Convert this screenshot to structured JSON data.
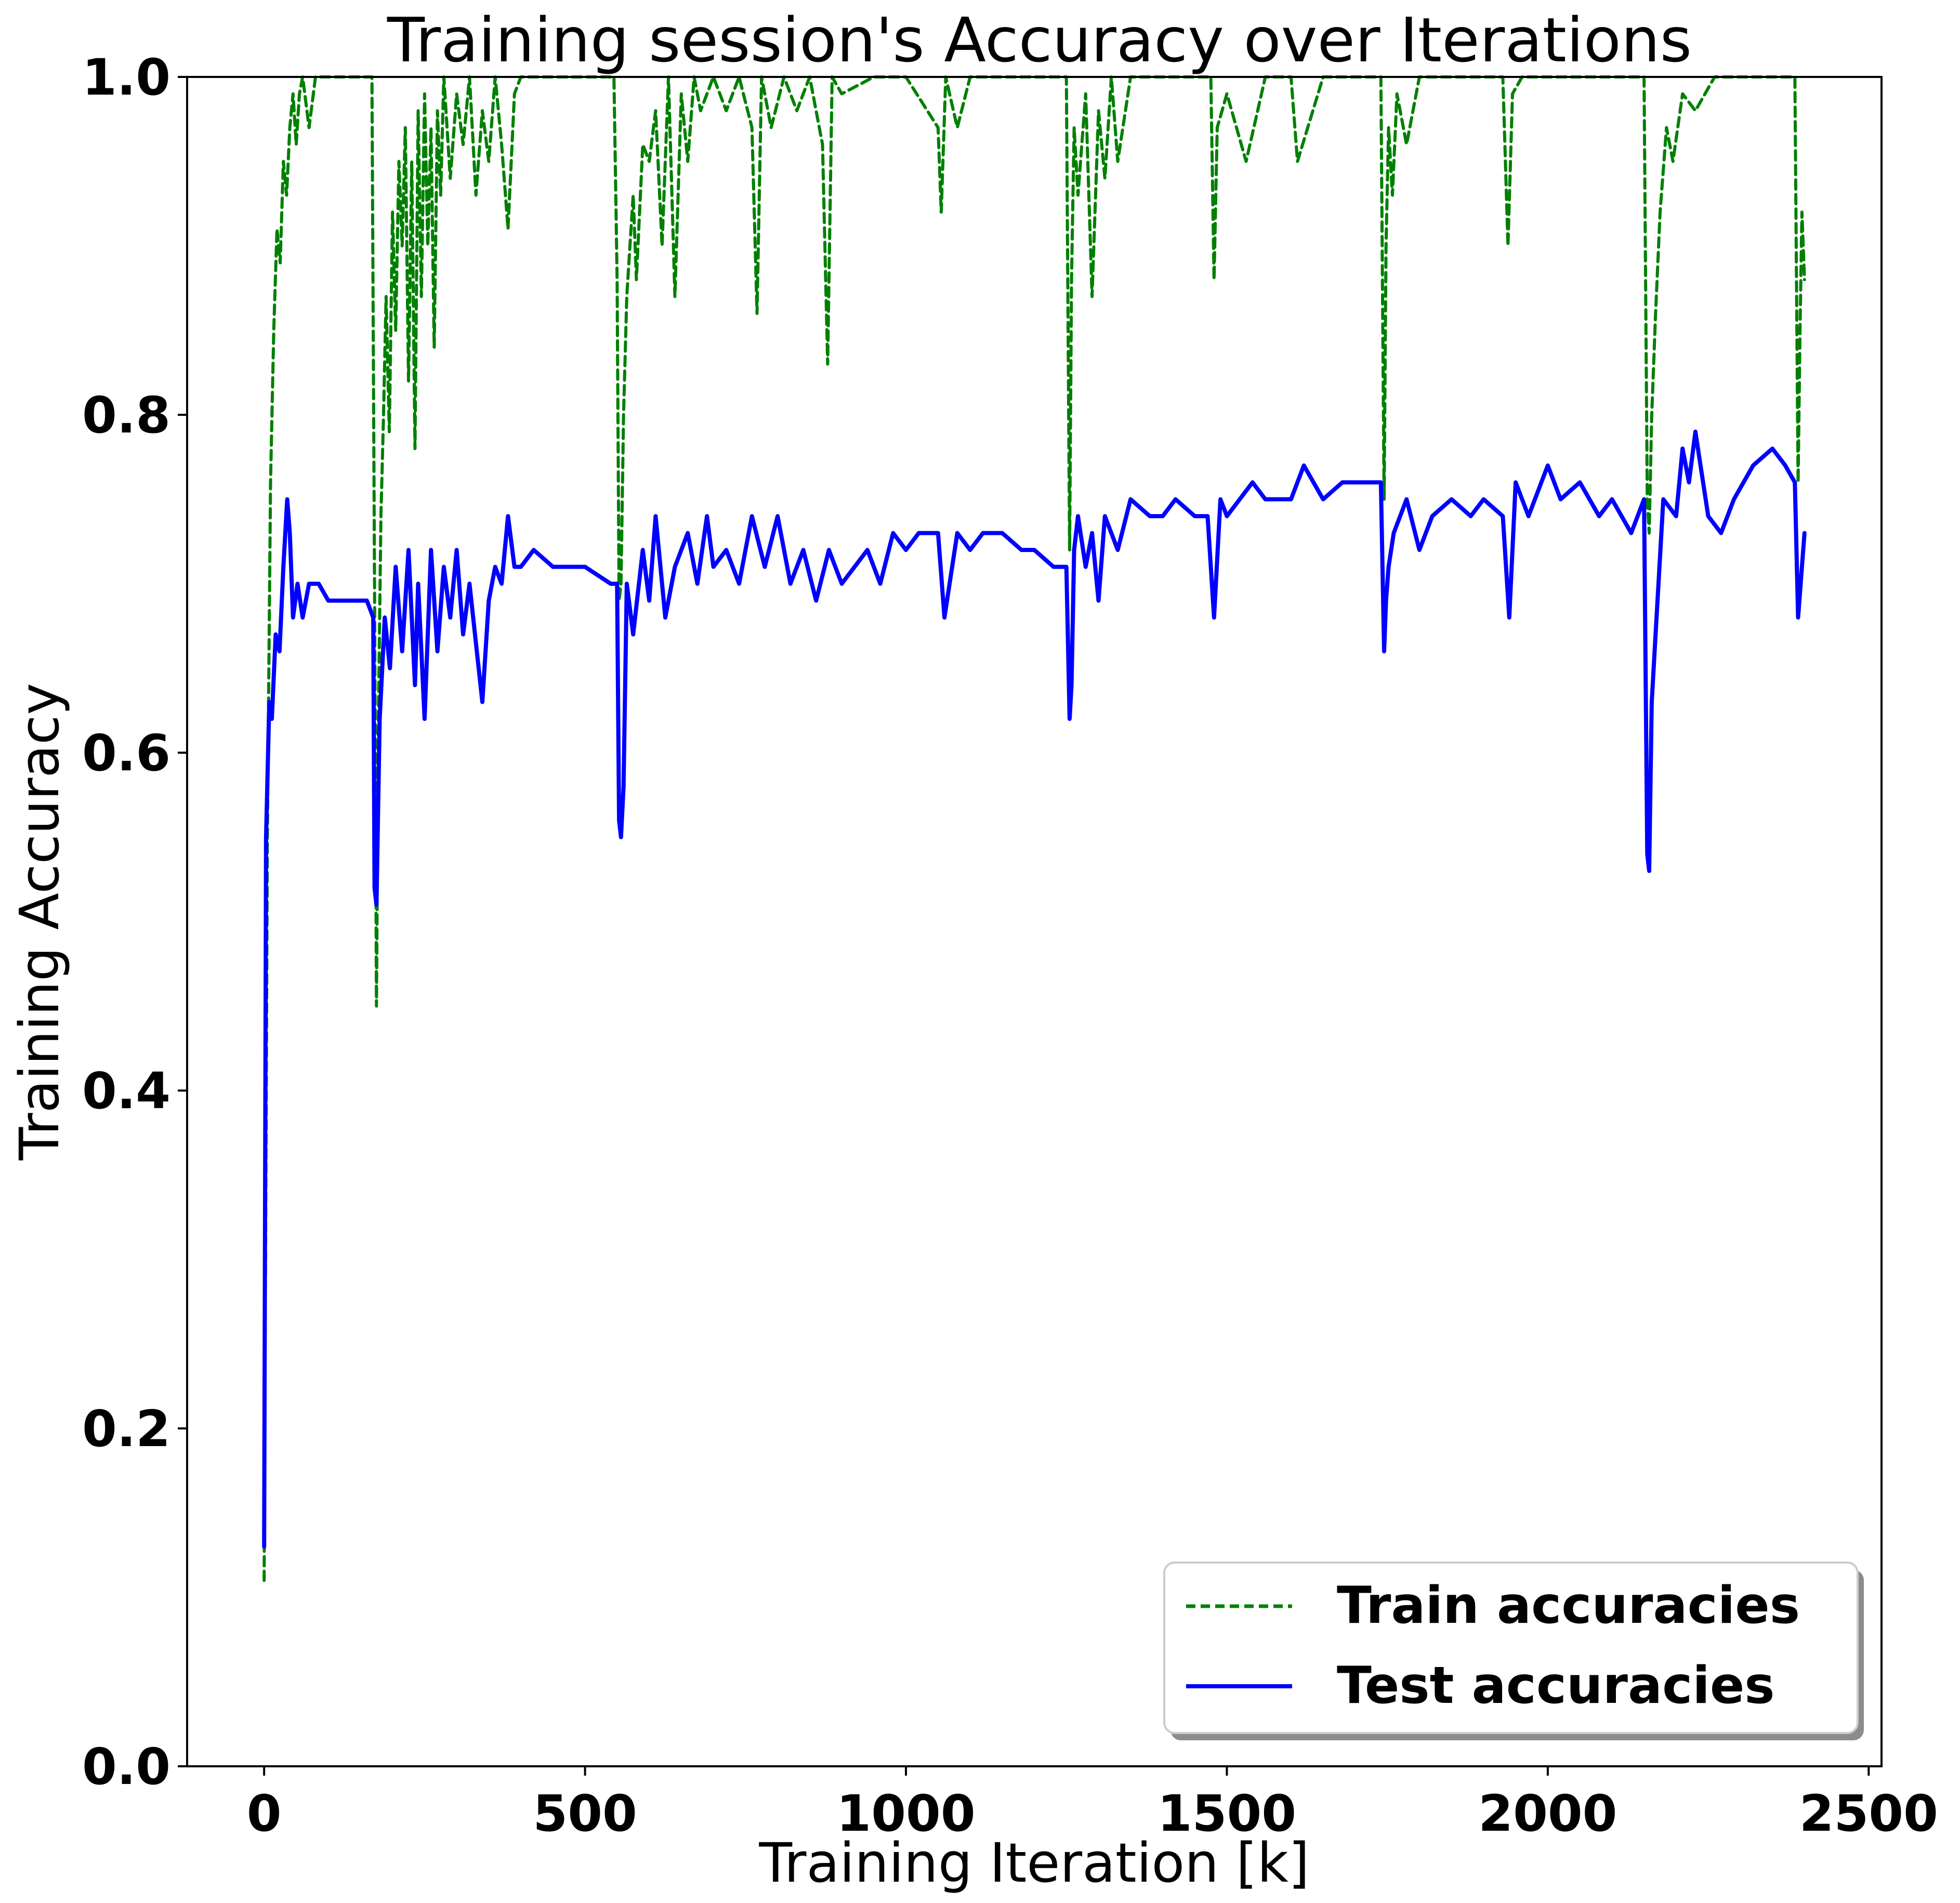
{
  "chart_data": {
    "type": "line",
    "title": "Training session's Accuracy over Iterations",
    "xlabel": "Training Iteration [k]",
    "ylabel": "Training Accuracy",
    "xlim": [
      -120,
      2520
    ],
    "ylim": [
      0.0,
      1.0
    ],
    "xticks": [
      0,
      500,
      1000,
      1500,
      2000,
      2500
    ],
    "xtick_labels": [
      "0",
      "500",
      "1000",
      "1500",
      "2000",
      "2500"
    ],
    "yticks": [
      0.0,
      0.2,
      0.4,
      0.6,
      0.8,
      1.0
    ],
    "ytick_labels": [
      "0.0",
      "0.2",
      "0.4",
      "0.6",
      "0.8",
      "1.0"
    ],
    "grid": false,
    "legend_position": "bottom-right",
    "series": [
      {
        "name": "Train accuracies",
        "color": "#008000",
        "style": "dashed",
        "x": [
          0,
          5,
          10,
          15,
          20,
          25,
          30,
          35,
          40,
          45,
          50,
          55,
          60,
          70,
          80,
          100,
          120,
          150,
          168,
          172,
          175,
          178,
          182,
          186,
          190,
          195,
          200,
          205,
          210,
          215,
          220,
          225,
          230,
          235,
          240,
          245,
          250,
          255,
          260,
          265,
          270,
          275,
          280,
          290,
          300,
          310,
          320,
          330,
          340,
          350,
          360,
          370,
          380,
          390,
          400,
          450,
          500,
          545,
          550,
          553,
          556,
          560,
          565,
          570,
          575,
          580,
          590,
          600,
          610,
          620,
          630,
          640,
          650,
          660,
          670,
          680,
          700,
          720,
          740,
          760,
          768,
          775,
          790,
          810,
          830,
          850,
          870,
          878,
          885,
          900,
          950,
          1000,
          1050,
          1055,
          1062,
          1080,
          1100,
          1200,
          1250,
          1255,
          1258,
          1262,
          1268,
          1280,
          1290,
          1300,
          1310,
          1320,
          1330,
          1350,
          1400,
          1450,
          1475,
          1480,
          1485,
          1500,
          1530,
          1560,
          1600,
          1610,
          1650,
          1700,
          1740,
          1745,
          1748,
          1752,
          1758,
          1765,
          1780,
          1800,
          1850,
          1900,
          1930,
          1938,
          1945,
          1960,
          2000,
          2050,
          2100,
          2150,
          2155,
          2158,
          2162,
          2168,
          2175,
          2185,
          2195,
          2210,
          2230,
          2260,
          2300,
          2350,
          2385,
          2390,
          2393,
          2396,
          2400
        ],
        "values": [
          0.11,
          0.55,
          0.76,
          0.85,
          0.91,
          0.89,
          0.95,
          0.93,
          0.97,
          0.99,
          0.96,
          0.99,
          1.0,
          0.97,
          1.0,
          1.0,
          1.0,
          1.0,
          1.0,
          0.7,
          0.45,
          0.62,
          0.74,
          0.8,
          0.87,
          0.79,
          0.92,
          0.85,
          0.95,
          0.9,
          0.97,
          0.82,
          0.95,
          0.78,
          0.98,
          0.87,
          0.99,
          0.9,
          0.97,
          0.84,
          0.98,
          0.93,
          1.0,
          0.94,
          0.99,
          0.96,
          1.0,
          0.93,
          0.98,
          0.95,
          1.0,
          0.96,
          0.91,
          0.99,
          1.0,
          1.0,
          1.0,
          1.0,
          0.88,
          0.69,
          0.7,
          0.8,
          0.87,
          0.9,
          0.93,
          0.88,
          0.96,
          0.95,
          0.98,
          0.9,
          1.0,
          0.87,
          0.99,
          0.95,
          1.0,
          0.98,
          1.0,
          0.98,
          1.0,
          0.97,
          0.86,
          1.0,
          0.97,
          1.0,
          0.98,
          1.0,
          0.96,
          0.83,
          1.0,
          0.99,
          1.0,
          1.0,
          0.97,
          0.92,
          1.0,
          0.97,
          1.0,
          1.0,
          1.0,
          0.72,
          0.88,
          0.97,
          0.93,
          0.99,
          0.87,
          0.98,
          0.94,
          1.0,
          0.95,
          1.0,
          1.0,
          1.0,
          1.0,
          0.88,
          0.97,
          0.99,
          0.95,
          1.0,
          1.0,
          0.95,
          1.0,
          1.0,
          1.0,
          0.75,
          0.9,
          0.97,
          0.93,
          0.99,
          0.96,
          1.0,
          1.0,
          1.0,
          1.0,
          0.9,
          0.99,
          1.0,
          1.0,
          1.0,
          1.0,
          1.0,
          0.75,
          0.73,
          0.8,
          0.86,
          0.92,
          0.97,
          0.95,
          0.99,
          0.98,
          1.0,
          1.0,
          1.0,
          1.0,
          0.76,
          0.85,
          0.92,
          0.88
        ]
      },
      {
        "name": "Test accuracies",
        "color": "#0000ff",
        "style": "solid",
        "x": [
          0,
          3,
          8,
          12,
          18,
          24,
          30,
          36,
          40,
          45,
          52,
          60,
          70,
          85,
          100,
          120,
          140,
          160,
          170,
          172,
          175,
          180,
          188,
          196,
          205,
          215,
          225,
          235,
          240,
          250,
          260,
          270,
          280,
          290,
          300,
          310,
          320,
          340,
          350,
          360,
          370,
          380,
          390,
          400,
          420,
          450,
          500,
          540,
          550,
          553,
          556,
          560,
          565,
          575,
          590,
          600,
          610,
          625,
          640,
          660,
          675,
          690,
          700,
          720,
          740,
          760,
          780,
          800,
          820,
          840,
          860,
          880,
          900,
          920,
          940,
          960,
          980,
          1000,
          1020,
          1050,
          1060,
          1080,
          1100,
          1120,
          1150,
          1180,
          1200,
          1230,
          1250,
          1255,
          1258,
          1262,
          1268,
          1280,
          1290,
          1300,
          1310,
          1330,
          1350,
          1380,
          1400,
          1420,
          1450,
          1470,
          1480,
          1490,
          1500,
          1520,
          1540,
          1560,
          1600,
          1620,
          1650,
          1680,
          1700,
          1740,
          1745,
          1748,
          1752,
          1760,
          1780,
          1800,
          1820,
          1850,
          1880,
          1900,
          1930,
          1940,
          1950,
          1970,
          2000,
          2020,
          2050,
          2080,
          2100,
          2130,
          2150,
          2155,
          2158,
          2162,
          2168,
          2180,
          2200,
          2210,
          2220,
          2230,
          2250,
          2270,
          2290,
          2320,
          2350,
          2370,
          2385,
          2390,
          2394,
          2400
        ],
        "values": [
          0.13,
          0.55,
          0.63,
          0.62,
          0.67,
          0.66,
          0.71,
          0.75,
          0.73,
          0.68,
          0.7,
          0.68,
          0.7,
          0.7,
          0.69,
          0.69,
          0.69,
          0.69,
          0.68,
          0.52,
          0.51,
          0.62,
          0.68,
          0.65,
          0.71,
          0.66,
          0.72,
          0.64,
          0.7,
          0.62,
          0.72,
          0.66,
          0.71,
          0.68,
          0.72,
          0.67,
          0.7,
          0.63,
          0.69,
          0.71,
          0.7,
          0.74,
          0.71,
          0.71,
          0.72,
          0.71,
          0.71,
          0.7,
          0.7,
          0.56,
          0.55,
          0.58,
          0.7,
          0.67,
          0.72,
          0.69,
          0.74,
          0.68,
          0.71,
          0.73,
          0.7,
          0.74,
          0.71,
          0.72,
          0.7,
          0.74,
          0.71,
          0.74,
          0.7,
          0.72,
          0.69,
          0.72,
          0.7,
          0.71,
          0.72,
          0.7,
          0.73,
          0.72,
          0.73,
          0.73,
          0.68,
          0.73,
          0.72,
          0.73,
          0.73,
          0.72,
          0.72,
          0.71,
          0.71,
          0.62,
          0.64,
          0.72,
          0.74,
          0.71,
          0.73,
          0.69,
          0.74,
          0.72,
          0.75,
          0.74,
          0.74,
          0.75,
          0.74,
          0.74,
          0.68,
          0.75,
          0.74,
          0.75,
          0.76,
          0.75,
          0.75,
          0.77,
          0.75,
          0.76,
          0.76,
          0.76,
          0.66,
          0.69,
          0.71,
          0.73,
          0.75,
          0.72,
          0.74,
          0.75,
          0.74,
          0.75,
          0.74,
          0.68,
          0.76,
          0.74,
          0.77,
          0.75,
          0.76,
          0.74,
          0.75,
          0.73,
          0.75,
          0.54,
          0.53,
          0.63,
          0.67,
          0.75,
          0.74,
          0.78,
          0.76,
          0.79,
          0.74,
          0.73,
          0.75,
          0.77,
          0.78,
          0.77,
          0.76,
          0.68,
          0.7,
          0.73
        ]
      }
    ]
  }
}
